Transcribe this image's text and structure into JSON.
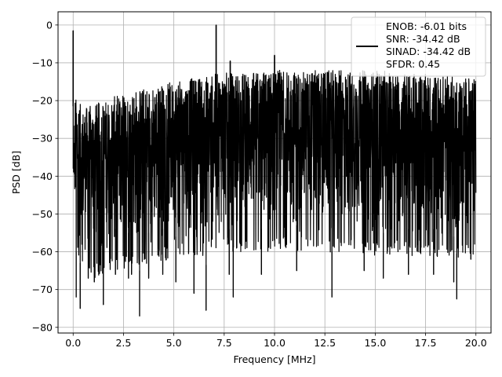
{
  "chart_data": {
    "type": "line",
    "xlabel": "Frequency [MHz]",
    "ylabel": "PSD [dB]",
    "xlim": [
      -0.75,
      20.75
    ],
    "ylim": [
      -81.5,
      3.5
    ],
    "xticks": [
      0.0,
      2.5,
      5.0,
      7.5,
      10.0,
      12.5,
      15.0,
      17.5,
      20.0
    ],
    "xtick_labels": [
      "0.0",
      "2.5",
      "5.0",
      "7.5",
      "10.0",
      "12.5",
      "15.0",
      "17.5",
      "20.0"
    ],
    "yticks": [
      0,
      -10,
      -20,
      -30,
      -40,
      -50,
      -60,
      -70,
      -80
    ],
    "ytick_labels": [
      "0",
      "−10",
      "−20",
      "−30",
      "−40",
      "−50",
      "−60",
      "−70",
      "−80"
    ],
    "grid": true,
    "legend_position": "top-right",
    "series": [
      {
        "color": "#000000",
        "legend_lines": [
          "ENOB: -6.01 bits",
          "SNR: -34.42 dB",
          "SINAD: -34.42 dB",
          "SFDR: 0.45"
        ],
        "noise_envelope": {
          "x": [
            0.0,
            0.1,
            0.5,
            1.0,
            2.0,
            3.0,
            5.0,
            6.5,
            7.5,
            8.5,
            10.0,
            12.5,
            15.0,
            17.5,
            20.0
          ],
          "upper": [
            -38,
            -19,
            -22,
            -21,
            -19,
            -17,
            -15,
            -13.5,
            -12.5,
            -12.5,
            -12,
            -12,
            -12,
            -13,
            -14
          ],
          "lower": [
            -38,
            -56,
            -62,
            -63,
            -61,
            -60,
            -58,
            -57,
            -56,
            -56,
            -56,
            -56,
            -57,
            -57,
            -58
          ]
        },
        "peaks": [
          {
            "x": 0.0,
            "y": -1.5
          },
          {
            "x": 7.1,
            "y": 0.0
          },
          {
            "x": 7.8,
            "y": -9.5
          },
          {
            "x": 10.0,
            "y": -8.0
          }
        ],
        "dips": [
          {
            "x": 0.15,
            "y": -72.0
          },
          {
            "x": 0.35,
            "y": -75.0
          },
          {
            "x": 0.75,
            "y": -67.0
          },
          {
            "x": 1.05,
            "y": -68.0
          },
          {
            "x": 1.5,
            "y": -74.0
          },
          {
            "x": 2.1,
            "y": -66.0
          },
          {
            "x": 2.75,
            "y": -67.0
          },
          {
            "x": 2.9,
            "y": -66.0
          },
          {
            "x": 3.3,
            "y": -77.0
          },
          {
            "x": 3.75,
            "y": -67.0
          },
          {
            "x": 4.45,
            "y": -66.0
          },
          {
            "x": 5.1,
            "y": -68.0
          },
          {
            "x": 6.0,
            "y": -71.0
          },
          {
            "x": 6.6,
            "y": -75.5
          },
          {
            "x": 7.75,
            "y": -66.0
          },
          {
            "x": 7.95,
            "y": -72.0
          },
          {
            "x": 9.35,
            "y": -66.0
          },
          {
            "x": 11.1,
            "y": -65.0
          },
          {
            "x": 12.85,
            "y": -72.0
          },
          {
            "x": 14.45,
            "y": -65.0
          },
          {
            "x": 15.4,
            "y": -67.0
          },
          {
            "x": 16.65,
            "y": -66.0
          },
          {
            "x": 17.9,
            "y": -66.0
          },
          {
            "x": 18.9,
            "y": -68.0
          },
          {
            "x": 19.05,
            "y": -72.5
          },
          {
            "x": 19.75,
            "y": -62.0
          }
        ]
      }
    ]
  }
}
